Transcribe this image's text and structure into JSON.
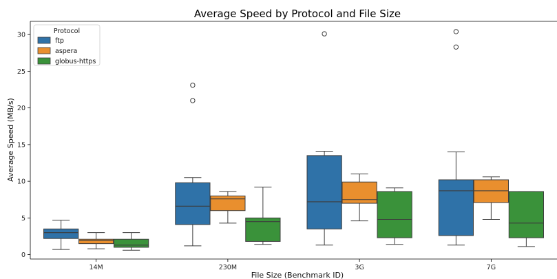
{
  "chart_data": {
    "type": "boxplot",
    "title": "Average Speed by Protocol and File Size",
    "xlabel": "File Size (Benchmark ID)",
    "ylabel": "Average Speed (MB/s)",
    "categories": [
      "14M",
      "230M",
      "3G",
      "7G"
    ],
    "ylim": [
      -0.6,
      31.8
    ],
    "yticks": [
      0,
      5,
      10,
      15,
      20,
      25,
      30
    ],
    "grid": false,
    "legend": {
      "title": "Protocol",
      "position": "top-left"
    },
    "series": [
      {
        "name": "ftp",
        "color": "#2f72a8",
        "boxes": [
          {
            "whisker_low": 0.7,
            "q1": 2.2,
            "median": 3.0,
            "q3": 3.5,
            "whisker_high": 4.7,
            "outliers": []
          },
          {
            "whisker_low": 1.2,
            "q1": 4.1,
            "median": 6.6,
            "q3": 9.8,
            "whisker_high": 10.5,
            "outliers": [
              21.0,
              23.1
            ]
          },
          {
            "whisker_low": 1.3,
            "q1": 3.5,
            "median": 7.2,
            "q3": 13.5,
            "whisker_high": 14.1,
            "outliers": [
              30.1
            ]
          },
          {
            "whisker_low": 1.3,
            "q1": 2.6,
            "median": 8.7,
            "q3": 10.2,
            "whisker_high": 14.0,
            "outliers": [
              28.3,
              30.4
            ]
          }
        ]
      },
      {
        "name": "aspera",
        "color": "#e98f2e",
        "boxes": [
          {
            "whisker_low": 0.8,
            "q1": 1.5,
            "median": 1.9,
            "q3": 2.1,
            "whisker_high": 3.0,
            "outliers": []
          },
          {
            "whisker_low": 4.3,
            "q1": 6.0,
            "median": 7.6,
            "q3": 8.0,
            "whisker_high": 8.6,
            "outliers": []
          },
          {
            "whisker_low": 4.6,
            "q1": 7.0,
            "median": 7.5,
            "q3": 9.9,
            "whisker_high": 11.0,
            "outliers": []
          },
          {
            "whisker_low": 4.8,
            "q1": 7.1,
            "median": 8.7,
            "q3": 10.2,
            "whisker_high": 10.6,
            "outliers": []
          }
        ]
      },
      {
        "name": "globus-https",
        "color": "#3a923a",
        "boxes": [
          {
            "whisker_low": 0.6,
            "q1": 1.0,
            "median": 1.3,
            "q3": 2.1,
            "whisker_high": 3.0,
            "outliers": []
          },
          {
            "whisker_low": 1.4,
            "q1": 1.8,
            "median": 4.5,
            "q3": 5.0,
            "whisker_high": 9.2,
            "outliers": []
          },
          {
            "whisker_low": 1.4,
            "q1": 2.3,
            "median": 4.8,
            "q3": 8.6,
            "whisker_high": 9.1,
            "outliers": []
          },
          {
            "whisker_low": 1.1,
            "q1": 2.3,
            "median": 4.3,
            "q3": 8.6,
            "whisker_high": 8.6,
            "outliers": []
          }
        ]
      }
    ]
  }
}
